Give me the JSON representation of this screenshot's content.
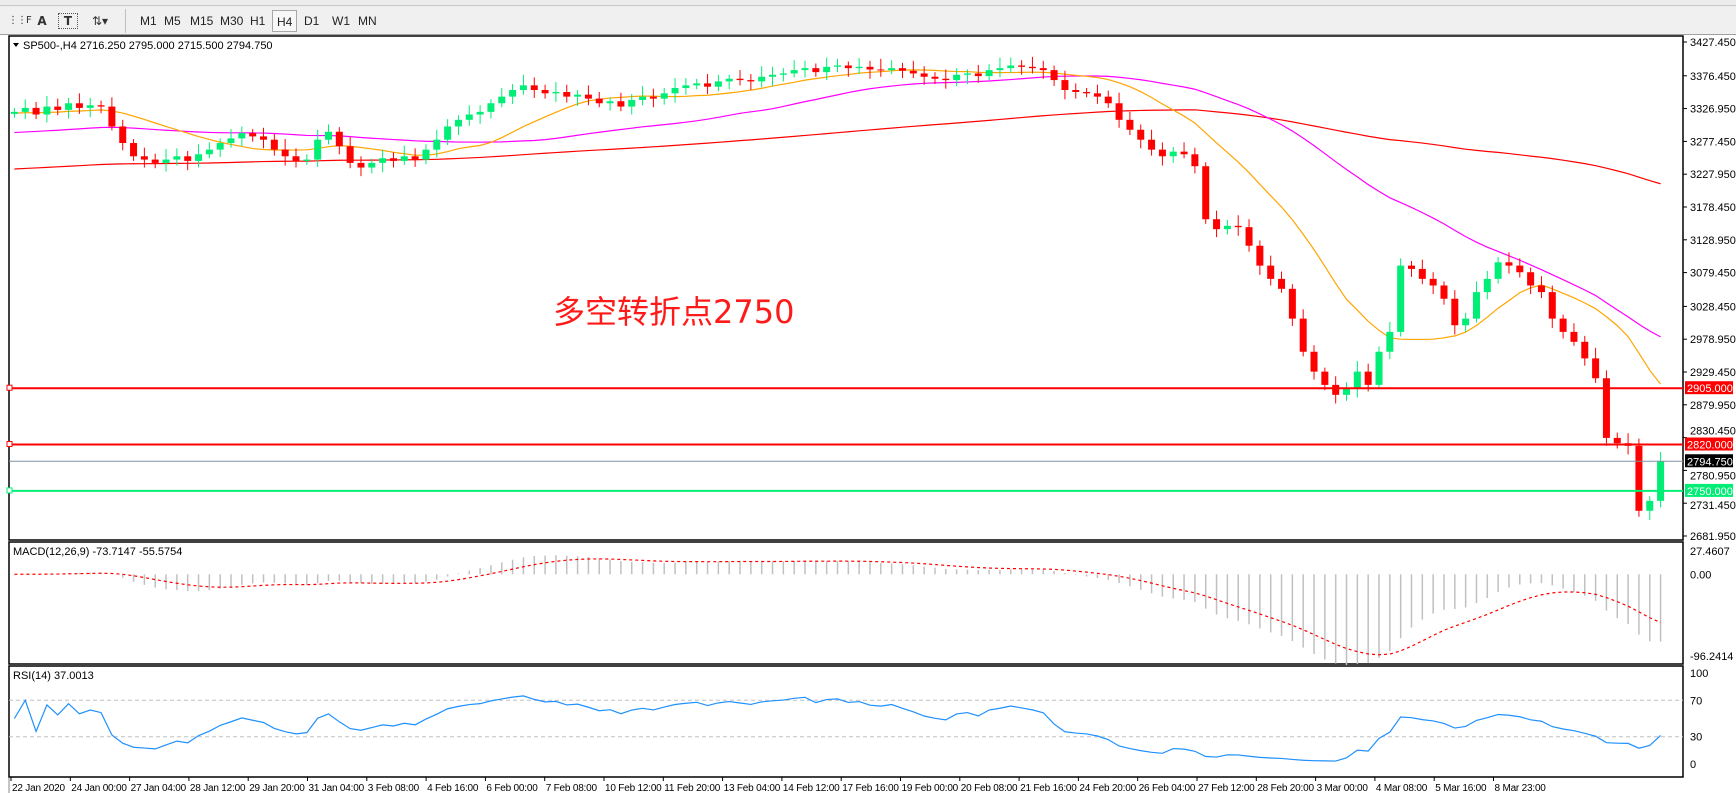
{
  "toolbar": {
    "icons": [
      "period-separator-icon",
      "text-icon",
      "text-label-icon",
      "arrows-icon"
    ],
    "timeframes": [
      "M1",
      "M5",
      "M15",
      "M30",
      "H1",
      "H4",
      "D1",
      "W1",
      "MN"
    ],
    "active_timeframe": "H4"
  },
  "main": {
    "header": "SP500-,H4  2716.250 2795.000 2715.500 2794.750",
    "annotation": "多空转折点2750",
    "price_ticks": [
      "3427.450",
      "3376.450",
      "3326.950",
      "3277.450",
      "3227.950",
      "3178.450",
      "3128.950",
      "3079.450",
      "3028.450",
      "2978.950",
      "2929.450",
      "2879.950",
      "2830.450",
      "2780.950",
      "2731.450",
      "2681.950"
    ],
    "price_min": 2681.95,
    "price_max": 3427.45,
    "hlines": [
      {
        "price": 2905.0,
        "label": "2905.000",
        "color": "#ff0000"
      },
      {
        "price": 2820.0,
        "label": "2820.000",
        "color": "#ff0000"
      },
      {
        "price": 2750.0,
        "label": "2750.000",
        "color": "#00ee76"
      }
    ],
    "current_price": {
      "price": 2794.75,
      "label": "2794.750",
      "color": "#000000"
    },
    "colors": {
      "bull": "#00ee76",
      "bear": "#ff0000",
      "ma_fast": "#ffa500",
      "ma_mid": "#ff00ff",
      "ma_slow": "#ff0000"
    },
    "closes": [
      3322,
      3328,
      3318,
      3330,
      3325,
      3335,
      3328,
      3332,
      3330,
      3300,
      3275,
      3255,
      3250,
      3245,
      3250,
      3255,
      3248,
      3258,
      3265,
      3275,
      3282,
      3290,
      3285,
      3280,
      3265,
      3255,
      3248,
      3250,
      3280,
      3292,
      3270,
      3245,
      3238,
      3245,
      3252,
      3248,
      3255,
      3250,
      3265,
      3280,
      3300,
      3310,
      3318,
      3322,
      3335,
      3345,
      3355,
      3362,
      3355,
      3350,
      3352,
      3345,
      3348,
      3342,
      3335,
      3338,
      3330,
      3340,
      3345,
      3342,
      3350,
      3358,
      3362,
      3365,
      3360,
      3368,
      3372,
      3370,
      3368,
      3375,
      3378,
      3380,
      3385,
      3388,
      3382,
      3390,
      3392,
      3388,
      3390,
      3386,
      3385,
      3388,
      3384,
      3380,
      3375,
      3372,
      3370,
      3378,
      3380,
      3376,
      3385,
      3388,
      3392,
      3390,
      3388,
      3385,
      3370,
      3355,
      3352,
      3350,
      3345,
      3335,
      3310,
      3295,
      3280,
      3265,
      3255,
      3262,
      3258,
      3240,
      3160,
      3145,
      3150,
      3148,
      3120,
      3090,
      3070,
      3055,
      3010,
      2960,
      2930,
      2910,
      2895,
      2905,
      2930,
      2910,
      2960,
      2990,
      3090,
      3085,
      3070,
      3060,
      3040,
      3000,
      3010,
      3050,
      3070,
      3095,
      3090,
      3080,
      3060,
      3050,
      3010,
      2990,
      2975,
      2950,
      2920,
      2830,
      2822,
      2818,
      2720,
      2735,
      2794.75
    ]
  },
  "macd": {
    "header": "MACD(12,26,9) -73.7147 -55.5754",
    "ticks": [
      "27.4607",
      "0.00",
      "-96.2414"
    ],
    "max": 27.4607,
    "min": -96.2414
  },
  "rsi": {
    "header": "RSI(14) 37.0013",
    "ticks": [
      "100",
      "70",
      "30",
      "0"
    ],
    "levels": [
      70,
      30
    ],
    "color": "#1e90ff"
  },
  "time_axis": [
    "22 Jan 2020",
    "24 Jan 00:00",
    "27 Jan 04:00",
    "28 Jan 12:00",
    "29 Jan 20:00",
    "31 Jan 04:00",
    "3 Feb 08:00",
    "4 Feb 16:00",
    "6 Feb 00:00",
    "7 Feb 08:00",
    "10 Feb 12:00",
    "11 Feb 20:00",
    "13 Feb 04:00",
    "14 Feb 12:00",
    "17 Feb 16:00",
    "19 Feb 00:00",
    "20 Feb 08:00",
    "21 Feb 16:00",
    "24 Feb 20:00",
    "26 Feb 04:00",
    "27 Feb 12:00",
    "28 Feb 20:00",
    "3 Mar 00:00",
    "4 Mar 08:00",
    "5 Mar 16:00",
    "8 Mar 23:00"
  ]
}
